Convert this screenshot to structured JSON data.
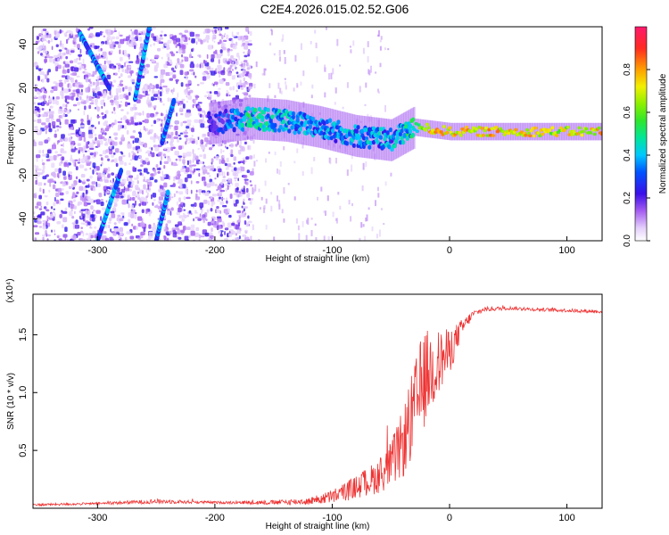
{
  "title": "C2E4.2026.015.02.52.G06",
  "colors": {
    "line": "#ee3333",
    "axis": "#000000",
    "spectrum_low": "#e7d6fb",
    "spectrum_mid": "#6a19e8",
    "spectrum_high": "#ff2a2a"
  },
  "chart_data": [
    {
      "name": "spectrogram",
      "type": "heatmap",
      "title": "",
      "xlabel": "Height of straight line (km)",
      "ylabel": "Frequency (Hz)",
      "xlim": [
        -355,
        130
      ],
      "ylim": [
        -50,
        48
      ],
      "xticks": [
        -300,
        -200,
        -100,
        0,
        100
      ],
      "yticks": [
        -40,
        -20,
        0,
        20,
        40
      ],
      "tick_labels_x": [
        "-300",
        "-200",
        "-100",
        "0",
        "100"
      ],
      "tick_labels_y": [
        "-40",
        "-20",
        "0",
        "20",
        "40"
      ],
      "grid": false,
      "description_points": {
        "carrier_track": {
          "x": [
            -200,
            -170,
            -140,
            -110,
            -80,
            -50,
            -30,
            -15,
            0,
            50,
            100,
            130
          ],
          "freq": [
            4,
            6,
            5,
            2,
            -2,
            -4,
            2,
            1,
            0,
            0,
            0,
            0
          ],
          "amplitude": [
            0.3,
            0.55,
            0.5,
            0.45,
            0.5,
            0.45,
            0.6,
            0.9,
            0.85,
            0.85,
            0.8,
            0.85
          ]
        },
        "diagonal_tracks": [
          {
            "x0": -315,
            "f0": 45,
            "x1": -290,
            "f1": 20
          },
          {
            "x0": -300,
            "f0": -50,
            "x1": -280,
            "f1": -18
          },
          {
            "x0": -268,
            "f0": 15,
            "x1": -255,
            "f1": 50
          },
          {
            "x0": -250,
            "f0": -50,
            "x1": -240,
            "f1": -28
          },
          {
            "x0": -245,
            "f0": -5,
            "x1": -235,
            "f1": 14
          }
        ]
      }
    },
    {
      "name": "colorbar",
      "type": "colorbar",
      "label": "Normalized spectral amplitude",
      "range": [
        0.0,
        1.0
      ],
      "ticks": [
        0.0,
        0.2,
        0.4,
        0.6,
        0.8
      ],
      "tick_labels": [
        "0.0",
        "0.2",
        "0.4",
        "0.6",
        "0.8"
      ]
    },
    {
      "name": "snr",
      "type": "line",
      "title": "",
      "xlabel": "Height of straight line (km)",
      "ylabel": "SNR (10 * v/v)",
      "multiplier": "(x10⁴)",
      "xlim": [
        -355,
        130
      ],
      "ylim": [
        0,
        1.85
      ],
      "xticks": [
        -300,
        -200,
        -100,
        0,
        100
      ],
      "yticks": [
        0.5,
        1.0,
        1.5
      ],
      "tick_labels_x": [
        "-300",
        "-200",
        "-100",
        "0",
        "100"
      ],
      "tick_labels_y": [
        "0.5",
        "1.0",
        "1.5"
      ],
      "grid": false,
      "series": [
        {
          "name": "SNR",
          "color": "#ee3333",
          "x": [
            -355,
            -300,
            -250,
            -200,
            -150,
            -120,
            -100,
            -80,
            -60,
            -50,
            -40,
            -35,
            -30,
            -25,
            -20,
            -15,
            -10,
            0,
            10,
            20,
            30,
            50,
            70,
            100,
            130
          ],
          "y": [
            0.03,
            0.04,
            0.06,
            0.05,
            0.05,
            0.06,
            0.1,
            0.18,
            0.28,
            0.38,
            0.55,
            0.7,
            0.85,
            1.0,
            1.15,
            1.2,
            1.25,
            1.35,
            1.55,
            1.68,
            1.72,
            1.73,
            1.72,
            1.71,
            1.7
          ],
          "noise": [
            0.01,
            0.01,
            0.02,
            0.01,
            0.02,
            0.03,
            0.06,
            0.1,
            0.15,
            0.2,
            0.3,
            0.35,
            0.4,
            0.45,
            0.4,
            0.35,
            0.3,
            0.2,
            0.08,
            0.03,
            0.02,
            0.015,
            0.015,
            0.015,
            0.015
          ]
        }
      ]
    }
  ]
}
